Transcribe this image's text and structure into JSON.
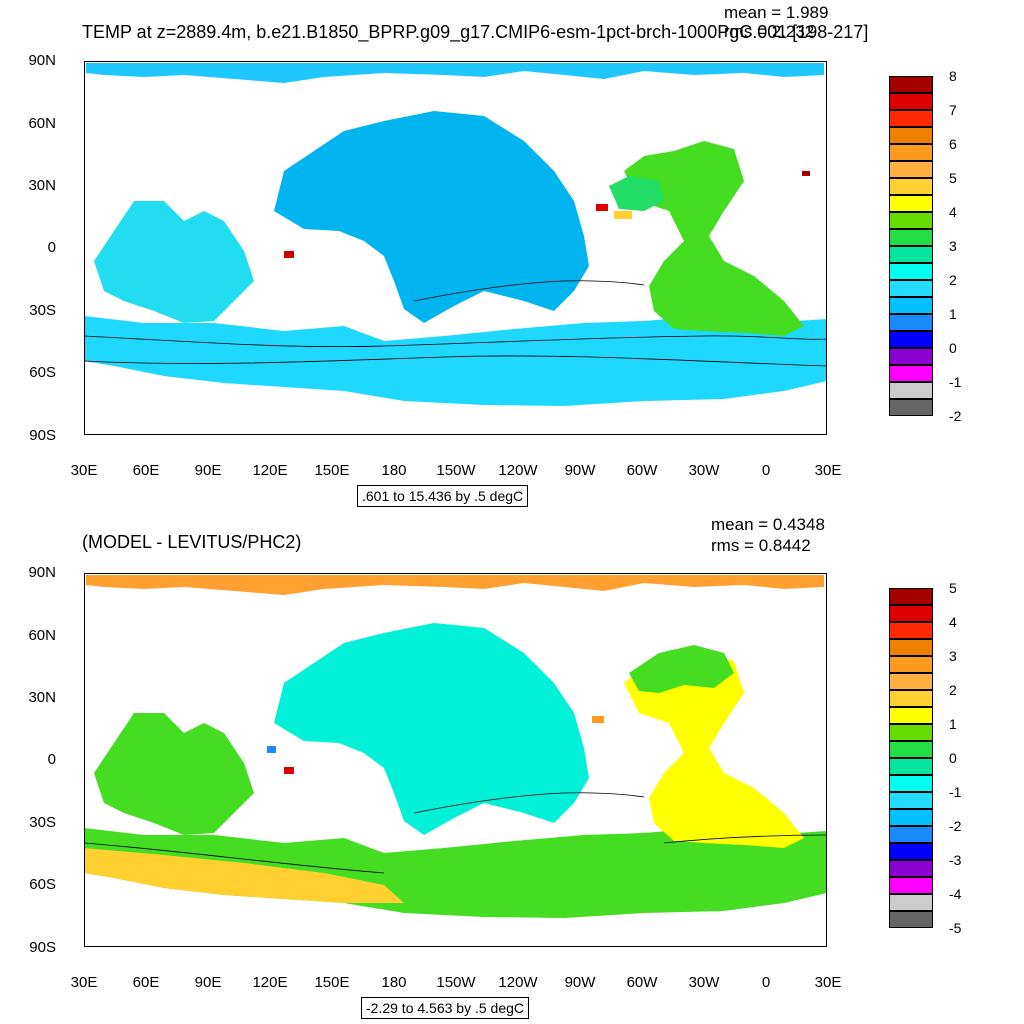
{
  "top": {
    "title": "TEMP at z=2889.4m, b.e21.B1850_BPRP.g09_g17.CMIP6-esm-1pct-brch-1000PgC.001 [198-217]",
    "mean": "mean = 1.989",
    "rms": "rms = 2.232",
    "range": ".601 to 15.436 by .5 degC",
    "colorbar": {
      "labels": [
        "8",
        "7",
        "6",
        "5",
        "4",
        "3",
        "2",
        "1",
        "0",
        "-1",
        "-2"
      ],
      "colors": [
        "#a50000",
        "#dd0000",
        "#ff2a00",
        "#f08000",
        "#ff9a20",
        "#ffb040",
        "#ffd030",
        "#ffff00",
        "#66dd00",
        "#22dd44",
        "#00e8a0",
        "#00ffee",
        "#22ddff",
        "#00c0ff",
        "#1a8cff",
        "#0000ff",
        "#8a00d0",
        "#ff00ff",
        "#cccccc",
        "#666666"
      ]
    },
    "fill": {
      "arctic": "#1ec8ff",
      "pacific": "#00b4f0",
      "southern": "#1ed8ff",
      "atlantic": "#44dd22",
      "atl_green": "#22dd66",
      "indian": "#22ddf0"
    }
  },
  "bottom": {
    "title": "(MODEL - LEVITUS/PHC2)",
    "mean": "mean = 0.4348",
    "rms": "rms = 0.8442",
    "range": "-2.29 to 4.563 by .5 degC",
    "colorbar": {
      "labels": [
        "5",
        "4",
        "3",
        "2",
        "1",
        "0",
        "-1",
        "-2",
        "-3",
        "-4",
        "-5"
      ],
      "colors": [
        "#a50000",
        "#dd0000",
        "#ff2a00",
        "#f08000",
        "#ff9a20",
        "#ffb040",
        "#ffd030",
        "#ffff00",
        "#66dd00",
        "#22dd44",
        "#00e8a0",
        "#00ffee",
        "#22ddff",
        "#00c0ff",
        "#1a8cff",
        "#0000ff",
        "#8a00d0",
        "#ff00ff",
        "#cccccc",
        "#666666"
      ]
    },
    "fill": {
      "arctic": "#ffa030",
      "pacific": "#00f0d8",
      "southern": "#44dd22",
      "atlantic": "#ffff00",
      "atl_green": "#44dd22",
      "indian": "#44dd22",
      "so_yellow": "#ffd030"
    }
  },
  "axes": {
    "lat_labels": [
      "90N",
      "60N",
      "30N",
      "0",
      "30S",
      "60S",
      "90S"
    ],
    "lon_labels": [
      "30E",
      "60E",
      "90E",
      "120E",
      "150E",
      "180",
      "150W",
      "120W",
      "90W",
      "60W",
      "30W",
      "0",
      "30E"
    ]
  }
}
